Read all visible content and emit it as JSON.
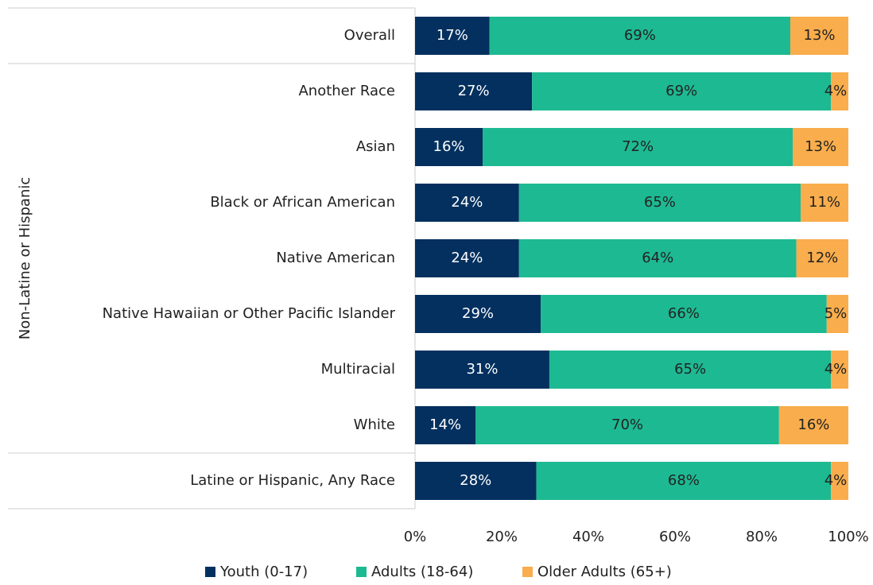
{
  "chart_data": {
    "type": "stacked_barh",
    "categories": [
      "Overall",
      "Another Race",
      "Asian",
      "Black or African American",
      "Native American",
      "Native Hawaiian or Other Pacific Islander",
      "Multiracial",
      "White",
      "Latine or Hispanic, Any Race"
    ],
    "group_label": "Non-Latine or Hispanic",
    "series": [
      {
        "name": "Youth (0-17)",
        "color": "#03305f",
        "values": [
          17.2,
          27,
          15.6,
          24,
          24,
          29,
          31,
          14,
          28
        ],
        "value_labels": [
          "17%",
          "27%",
          "16%",
          "24%",
          "24%",
          "29%",
          "31%",
          "14%",
          "28%"
        ]
      },
      {
        "name": "Adults (18-64)",
        "color": "#1db992",
        "values": [
          69.4,
          69,
          71.6,
          65,
          64,
          66,
          65,
          70,
          68
        ],
        "value_labels": [
          "69%",
          "69%",
          "72%",
          "65%",
          "64%",
          "66%",
          "65%",
          "70%",
          "68%"
        ]
      },
      {
        "name": "Older Adults (65+)",
        "color": "#f9ad4c",
        "values": [
          13.4,
          4,
          12.8,
          11,
          12,
          5,
          4,
          16,
          4
        ],
        "value_labels": [
          "13%",
          "4%",
          "13%",
          "11%",
          "12%",
          "5%",
          "4%",
          "16%",
          "4%"
        ]
      }
    ],
    "xlim": [
      0,
      100
    ],
    "xticks": [
      {
        "value": 0,
        "label": "0%"
      },
      {
        "value": 20,
        "label": "20%"
      },
      {
        "value": 40,
        "label": "40%"
      },
      {
        "value": 60,
        "label": "60%"
      },
      {
        "value": 80,
        "label": "80%"
      },
      {
        "value": 100,
        "label": "100%"
      }
    ],
    "legend": "bottom"
  }
}
